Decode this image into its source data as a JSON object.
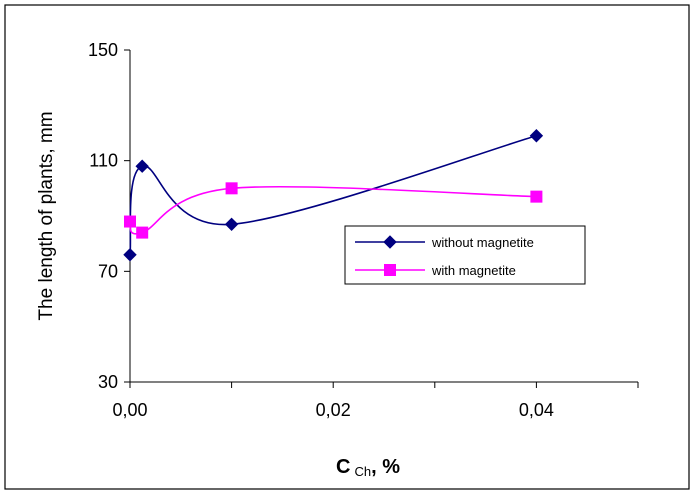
{
  "chart_data": {
    "type": "line",
    "xlabel_main": "C",
    "xlabel_sub": "Ch",
    "xlabel_unit": ", %",
    "ylabel": "The length of plants, mm",
    "xlim": [
      0,
      0.05
    ],
    "ylim": [
      30,
      150
    ],
    "xticks": [
      0,
      0.02,
      0.04
    ],
    "xtick_labels": [
      "0,00",
      "0,02",
      "0,04"
    ],
    "yticks": [
      30,
      70,
      110,
      150
    ],
    "ytick_labels": [
      "30",
      "70",
      "110",
      "150"
    ],
    "grid": false,
    "legend_position": "right",
    "series": [
      {
        "name": "without magnetite",
        "color": "#000080",
        "marker": "diamond",
        "x": [
          0,
          0.0012,
          0.01,
          0.04
        ],
        "y": [
          76,
          108,
          87,
          119
        ]
      },
      {
        "name": "with magnetite",
        "color": "#ff00ff",
        "marker": "square",
        "x": [
          0,
          0.0012,
          0.01,
          0.04
        ],
        "y": [
          88,
          84,
          100,
          97
        ]
      }
    ]
  }
}
